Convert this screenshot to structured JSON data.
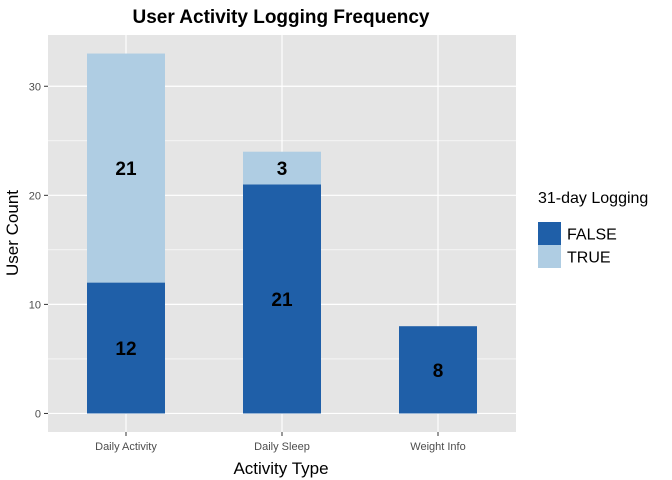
{
  "chart_data": {
    "type": "bar",
    "stacked": true,
    "title": "User Activity Logging Frequency",
    "xlabel": "Activity Type",
    "ylabel": "User Count",
    "categories": [
      "Daily Activity",
      "Daily Sleep",
      "Weight Info"
    ],
    "ylim": [
      -1.7,
      34.7
    ],
    "yticks": [
      0,
      10,
      20,
      30
    ],
    "grid": true,
    "legend": {
      "title": "31-day Logging",
      "position": "right",
      "items": [
        "FALSE",
        "TRUE"
      ]
    },
    "series": [
      {
        "name": "FALSE",
        "values": [
          12,
          21,
          8
        ],
        "color": "#1f5fa8"
      },
      {
        "name": "TRUE",
        "values": [
          21,
          3,
          0
        ],
        "color": "#afcde3"
      }
    ],
    "data_labels": {
      "FALSE": [
        "12",
        "21",
        "8"
      ],
      "TRUE": [
        "21",
        "3",
        ""
      ]
    },
    "colors": {
      "panel": "#e5e5e5",
      "gridline": "#ffffff"
    }
  }
}
